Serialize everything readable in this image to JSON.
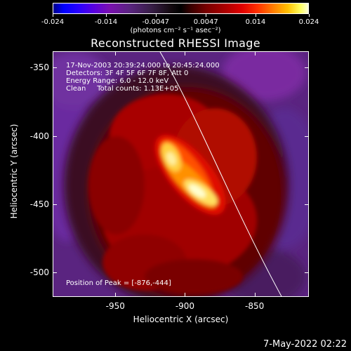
{
  "colorbar": {
    "ticks": [
      "-0.024",
      "-0.014",
      "-0.0047",
      "0.0047",
      "0.014",
      "0.024"
    ],
    "units": "(photons cm⁻² s⁻¹ asec⁻²)"
  },
  "plot": {
    "title": "Reconstructed RHESSI Image",
    "annotations": {
      "time": "17-Nov-2003 20:39:24.000 to 20:45:24.000",
      "detectors": "Detectors: 3F 4F 5F 6F 7F 8F, Att 0",
      "energy": "Energy Range: 6.0 - 12.0 keV",
      "clean": "Clean     Total counts: 1.13E+05"
    },
    "peak": "Position of Peak = [-876,-444]",
    "xlabel": "Heliocentric X (arcsec)",
    "ylabel": "Heliocentric Y (arcsec)",
    "xticks": [
      "-950",
      "-900",
      "-850"
    ],
    "yticks": [
      "-350",
      "-400",
      "-450",
      "-500"
    ]
  },
  "timestamp": "7-May-2022 02:22",
  "chart_data": {
    "type": "heatmap",
    "title": "Reconstructed RHESSI Image",
    "xlabel": "Heliocentric X (arcsec)",
    "ylabel": "Heliocentric Y (arcsec)",
    "xlim": [
      -995,
      -811
    ],
    "ylim": [
      -518,
      -338
    ],
    "colorbar_range": [
      -0.024,
      0.024
    ],
    "peak": [
      -876,
      -444
    ],
    "colors": {
      "low": "#0000ff",
      "mid": "#000000",
      "high": "#ffff60"
    }
  }
}
